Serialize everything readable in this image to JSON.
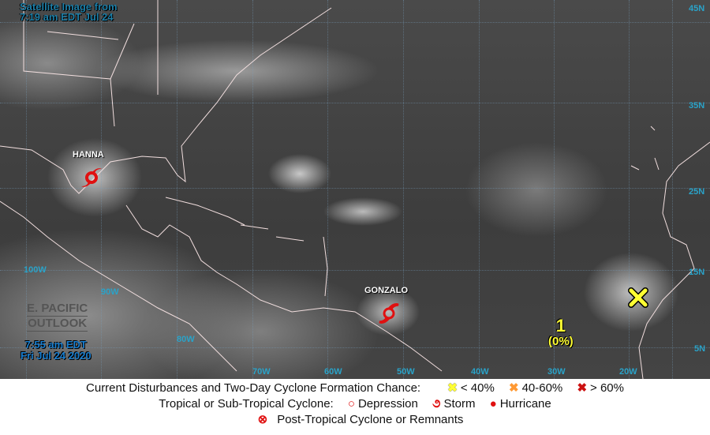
{
  "header": {
    "line1": "Satellite Image from",
    "line2": "7:19 am EDT Jul 24"
  },
  "outlook": {
    "line1": "E. PACIFIC",
    "line2": "OUTLOOK"
  },
  "issued": {
    "time": "7:55 am EDT",
    "date": "Fri Jul 24 2020"
  },
  "storms": [
    {
      "name": "HANNA",
      "type": "hurricane"
    },
    {
      "name": "GONZALO",
      "type": "storm"
    }
  ],
  "disturbance": {
    "id": "1",
    "chance": "(0%)",
    "category": "< 40%",
    "color": "#ffff33"
  },
  "lon_labels": [
    "100W",
    "90W",
    "80W",
    "70W",
    "60W",
    "50W",
    "40W",
    "30W",
    "20W"
  ],
  "lat_labels": [
    "45N",
    "35N",
    "25N",
    "15N",
    "5N"
  ],
  "legend": {
    "row1_label": "Current Disturbances and Two-Day Cyclone Formation Chance:",
    "low": "< 40%",
    "mid": "40-60%",
    "high": "> 60%",
    "colors": {
      "low": "#ffff33",
      "mid": "#ff9933",
      "high": "#cc1111",
      "cyclone": "#e01010"
    },
    "row2_label": "Tropical or Sub-Tropical Cyclone:",
    "depression": "Depression",
    "storm": "Storm",
    "hurricane": "Hurricane",
    "post_tropical": "Post-Tropical Cyclone or Remnants"
  }
}
